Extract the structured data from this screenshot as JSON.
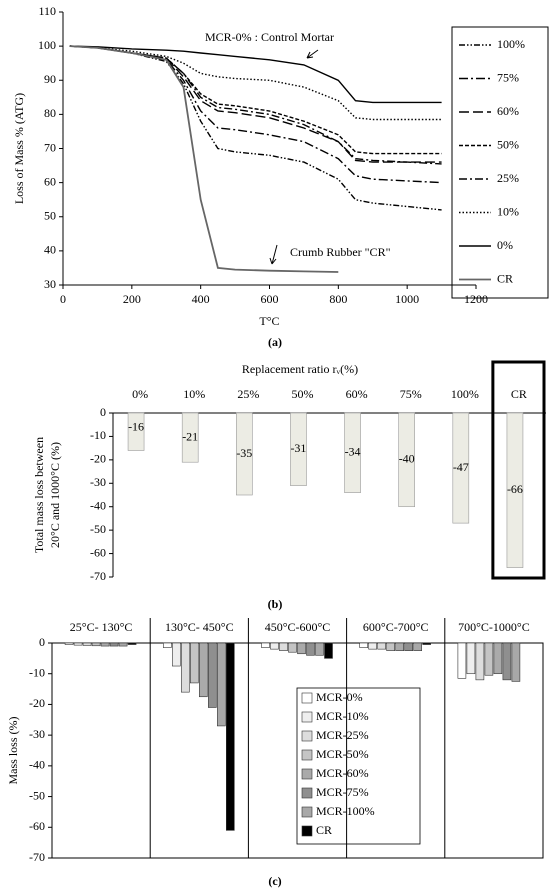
{
  "chart_data": [
    {
      "type": "line",
      "y_label": "Loss of Mass % (ATG)",
      "x_label": "T°C",
      "caption": "(a)",
      "annotations": [
        {
          "text": "MCR-0% : Control Mortar"
        },
        {
          "text": "Crumb Rubber \"CR\""
        }
      ],
      "x": [
        20,
        100,
        200,
        300,
        350,
        400,
        450,
        500,
        600,
        700,
        800,
        850,
        900,
        1000,
        1100
      ],
      "xlim": [
        0,
        1200
      ],
      "xticks": [
        0,
        200,
        400,
        600,
        800,
        1000,
        1200
      ],
      "ylim": [
        30,
        110
      ],
      "yticks": [
        30,
        40,
        50,
        60,
        70,
        80,
        90,
        100,
        110
      ],
      "legend": "upper right",
      "series": [
        {
          "name": "100%",
          "color": "#000000",
          "dash": "6,2,1.5,2,1.5,2",
          "values": [
            100,
            99.5,
            98,
            95.5,
            89,
            78,
            70,
            69,
            68,
            66,
            61,
            55,
            54,
            53,
            52
          ]
        },
        {
          "name": "75%",
          "color": "#000000",
          "dash": "9,3,2,3",
          "values": [
            100,
            99.5,
            98,
            96,
            90,
            81,
            76,
            75.5,
            74,
            72,
            67,
            62,
            61,
            60.5,
            60
          ]
        },
        {
          "name": "60%",
          "color": "#000000",
          "dash": "10,4",
          "values": [
            100,
            99.5,
            98,
            96.5,
            91,
            84,
            81,
            80.5,
            79,
            76,
            72,
            66.5,
            66,
            66,
            66
          ]
        },
        {
          "name": "50%",
          "color": "#000000",
          "dash": "4,2",
          "values": [
            100,
            99.5,
            98,
            96.5,
            92,
            86,
            83,
            82.5,
            81,
            78,
            74,
            69,
            68.5,
            68.5,
            68.5
          ]
        },
        {
          "name": "25%",
          "color": "#000000",
          "dash": "8,3,2,3",
          "values": [
            100,
            99.5,
            98,
            96.5,
            92,
            85,
            82,
            81.5,
            80,
            77,
            72,
            67,
            66.5,
            66,
            65.5
          ]
        },
        {
          "name": "10%",
          "color": "#000000",
          "dash": "1.5,2",
          "values": [
            100,
            99.5,
            98.5,
            97,
            95,
            92,
            91,
            90.5,
            90,
            88,
            84,
            79,
            78.5,
            78.5,
            78.5
          ]
        },
        {
          "name": "0%",
          "color": "#000000",
          "dash": "none",
          "values": [
            100,
            99.8,
            99.2,
            98.8,
            98.5,
            98,
            97.5,
            97,
            96,
            94.5,
            90,
            84,
            83.5,
            83.5,
            83.5
          ]
        },
        {
          "name": "CR",
          "color": "#666666",
          "dash": "none",
          "values": [
            100,
            99.5,
            98,
            96,
            88,
            55,
            35,
            34.5,
            34.2,
            34,
            33.8,
            null,
            null,
            null,
            null
          ]
        }
      ]
    },
    {
      "type": "bar",
      "x_label": "Replacement ratio rᵥ(%)",
      "y_label": [
        "Total mass loss between",
        "20°C and 1000°C (%)"
      ],
      "caption": "(b)",
      "categories": [
        "0%",
        "10%",
        "25%",
        "50%",
        "60%",
        "75%",
        "100%",
        "CR"
      ],
      "values": [
        -16,
        -21,
        -35,
        -31,
        -34,
        -40,
        -47,
        -66
      ],
      "color": "#ecece4",
      "ylim": [
        -70,
        0
      ],
      "yticks": [
        -70,
        -60,
        -50,
        -40,
        -30,
        -20,
        -10,
        0
      ]
    },
    {
      "type": "bar",
      "y_label": "Mass loss (%)",
      "caption": "(c)",
      "categories": [
        "25°C- 130°C",
        "130°C- 450°C",
        "450°C-600°C",
        "600°C-700°C",
        "700°C-1000°C"
      ],
      "ylim": [
        -70,
        0
      ],
      "yticks": [
        -70,
        -60,
        -50,
        -40,
        -30,
        -20,
        -10,
        0
      ],
      "series": [
        {
          "name": "MCR-0%",
          "color": "#ffffff",
          "values": [
            -0.5,
            -1.5,
            -1.5,
            -1.5,
            -11.5
          ]
        },
        {
          "name": "MCR-10%",
          "color": "#eeeeee",
          "values": [
            -0.7,
            -7.5,
            -2,
            -2,
            -10
          ]
        },
        {
          "name": "MCR-25%",
          "color": "#dddddd",
          "values": [
            -0.8,
            -16,
            -2.5,
            -2,
            -12
          ]
        },
        {
          "name": "MCR-50%",
          "color": "#c4c4c4",
          "values": [
            -0.9,
            -13,
            -3,
            -2.5,
            -10.5
          ]
        },
        {
          "name": "MCR-60%",
          "color": "#aaaaaa",
          "values": [
            -1,
            -17.5,
            -3.5,
            -2.5,
            -10
          ]
        },
        {
          "name": "MCR-75%",
          "color": "#8f8f8f",
          "values": [
            -1,
            -21,
            -4,
            -2.5,
            -12
          ]
        },
        {
          "name": "MCR-100%",
          "color": "#a8a8a8",
          "values": [
            -1,
            -27,
            -4,
            -2.5,
            -12.5
          ]
        },
        {
          "name": "CR",
          "color": "#000000",
          "values": [
            -0.5,
            -61,
            -5,
            -0.5,
            null
          ]
        }
      ]
    }
  ]
}
